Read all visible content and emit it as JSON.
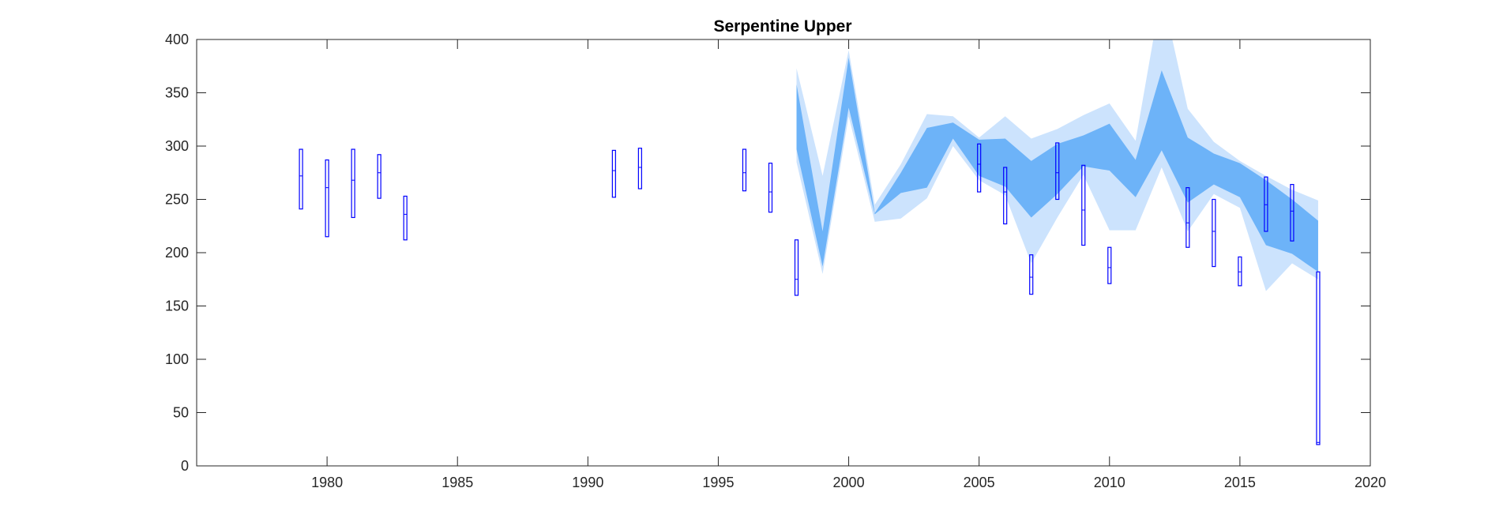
{
  "chart_data": {
    "type": "area",
    "title": "Serpentine Upper",
    "xlabel": "",
    "ylabel": "",
    "xlim": [
      1975,
      2020
    ],
    "ylim": [
      0,
      400
    ],
    "xticks": [
      1980,
      1985,
      1990,
      1995,
      2000,
      2005,
      2010,
      2015,
      2020
    ],
    "yticks": [
      0,
      50,
      100,
      150,
      200,
      250,
      300,
      350,
      400
    ],
    "grid": false,
    "legend": "none",
    "colors": {
      "outer_band": "#cce3fd",
      "inner_band": "#6db3f8",
      "box": "#0000ff",
      "axes": "#262626"
    },
    "outer_band": {
      "x": [
        1998,
        1999,
        2000,
        2001,
        2002,
        2003,
        2004,
        2005,
        2006,
        2007,
        2008,
        2009,
        2010,
        2011,
        2012,
        2013,
        2014,
        2015,
        2016,
        2017,
        2018
      ],
      "upper": [
        373,
        272,
        390,
        245,
        283,
        330,
        328,
        308,
        328,
        307,
        316,
        329,
        340,
        305,
        445,
        335,
        304,
        286,
        272,
        259,
        249
      ],
      "lower": [
        285,
        180,
        328,
        229,
        232,
        251,
        300,
        268,
        254,
        190,
        233,
        273,
        221,
        221,
        280,
        220,
        255,
        242,
        164,
        190,
        175
      ]
    },
    "inner_band": {
      "x": [
        1998,
        1999,
        2000,
        2001,
        2002,
        2003,
        2004,
        2005,
        2006,
        2007,
        2008,
        2009,
        2010,
        2011,
        2012,
        2013,
        2014,
        2015,
        2016,
        2017,
        2018
      ],
      "upper": [
        358,
        220,
        383,
        237,
        275,
        317,
        322,
        306,
        307,
        286,
        302,
        310,
        321,
        287,
        371,
        308,
        293,
        284,
        268,
        250,
        230
      ],
      "lower": [
        297,
        187,
        336,
        236,
        256,
        261,
        307,
        272,
        262,
        233,
        255,
        281,
        277,
        252,
        296,
        247,
        264,
        252,
        207,
        199,
        182
      ]
    },
    "boxes": [
      {
        "x": 1979,
        "low": 241,
        "median": 272,
        "high": 297
      },
      {
        "x": 1980,
        "low": 215,
        "median": 261,
        "high": 287
      },
      {
        "x": 1981,
        "low": 233,
        "median": 268,
        "high": 297
      },
      {
        "x": 1982,
        "low": 251,
        "median": 275,
        "high": 292
      },
      {
        "x": 1983,
        "low": 212,
        "median": 236,
        "high": 253
      },
      {
        "x": 1991,
        "low": 252,
        "median": 277,
        "high": 296
      },
      {
        "x": 1992,
        "low": 260,
        "median": 280,
        "high": 298
      },
      {
        "x": 1996,
        "low": 258,
        "median": 275,
        "high": 297
      },
      {
        "x": 1997,
        "low": 238,
        "median": 257,
        "high": 284
      },
      {
        "x": 1998,
        "low": 160,
        "median": 175,
        "high": 212
      },
      {
        "x": 2005,
        "low": 257,
        "median": 283,
        "high": 302
      },
      {
        "x": 2006,
        "low": 227,
        "median": 257,
        "high": 280
      },
      {
        "x": 2007,
        "low": 161,
        "median": 177,
        "high": 198
      },
      {
        "x": 2008,
        "low": 250,
        "median": 275,
        "high": 303
      },
      {
        "x": 2009,
        "low": 207,
        "median": 240,
        "high": 282
      },
      {
        "x": 2010,
        "low": 171,
        "median": 186,
        "high": 205
      },
      {
        "x": 2013,
        "low": 205,
        "median": 228,
        "high": 261
      },
      {
        "x": 2014,
        "low": 187,
        "median": 220,
        "high": 250
      },
      {
        "x": 2015,
        "low": 169,
        "median": 182,
        "high": 196
      },
      {
        "x": 2016,
        "low": 220,
        "median": 245,
        "high": 271
      },
      {
        "x": 2017,
        "low": 211,
        "median": 239,
        "high": 264
      },
      {
        "x": 2018,
        "low": 20,
        "median": 22,
        "high": 182
      }
    ]
  }
}
